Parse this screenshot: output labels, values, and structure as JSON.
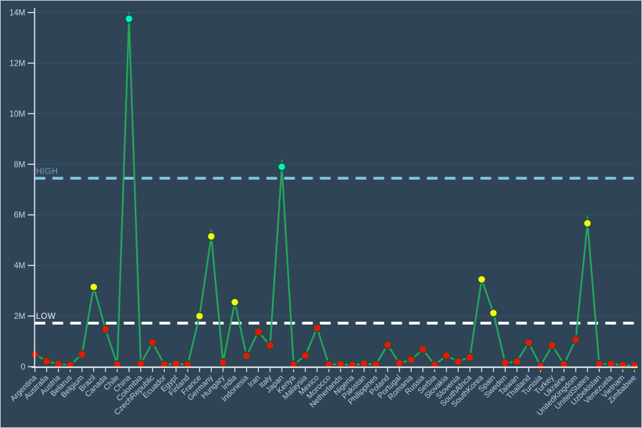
{
  "chart_data": {
    "type": "line",
    "title": "",
    "xlabel": "",
    "ylabel": "",
    "unit_suffix": "M",
    "categories": [
      "Argentina",
      "Australia",
      "Austria",
      "Belarus",
      "Belgium",
      "Brazil",
      "Canada",
      "Chile",
      "China",
      "Colombia",
      "CzechRepublic",
      "Ecuador",
      "Egypt",
      "Finland",
      "France",
      "Germany",
      "Hungary",
      "India",
      "Indonesia",
      "Iran",
      "Italy",
      "Japan",
      "Kenya",
      "Malaysia",
      "Mexico",
      "Morocco",
      "Netherlands",
      "Nigeria",
      "Pakistan",
      "Philippines",
      "Poland",
      "Portugal",
      "Romania",
      "Russia",
      "Serbia",
      "Slovakia",
      "Slovenia",
      "SouthAfrica",
      "SouthKorea",
      "Spain",
      "Sweden",
      "Taiwan",
      "Thailand",
      "Tunisia",
      "Turkey",
      "Ukraine",
      "UnitedKingdom",
      "UnitedStates",
      "Uzbekistan",
      "Venezuela",
      "Vietnam",
      "Zimbabwe"
    ],
    "values_millions": [
      0.49,
      0.21,
      0.1,
      0.06,
      0.49,
      3.15,
      1.48,
      0.08,
      13.75,
      0.11,
      0.96,
      0.08,
      0.11,
      0.08,
      2.0,
      5.15,
      0.16,
      2.55,
      0.43,
      1.38,
      0.84,
      7.9,
      0.07,
      0.44,
      1.53,
      0.08,
      0.1,
      0.06,
      0.12,
      0.08,
      0.86,
      0.13,
      0.27,
      0.68,
      0.07,
      0.43,
      0.21,
      0.37,
      3.45,
      2.12,
      0.15,
      0.2,
      0.95,
      0.03,
      0.84,
      0.09,
      1.07,
      5.67,
      0.1,
      0.11,
      0.06,
      0.04
    ],
    "ylim": [
      0,
      14
    ],
    "yticks": [
      0,
      2,
      4,
      6,
      8,
      10,
      12,
      14
    ],
    "ytick_labels": [
      "0",
      "2M",
      "4M",
      "6M",
      "8M",
      "10M",
      "12M",
      "14M"
    ],
    "grid": "horizontal-only",
    "legend": "none",
    "reference_lines": [
      {
        "name": "high",
        "label": "HIGH",
        "value_millions": 7.45
      },
      {
        "name": "low",
        "label": "LOW",
        "value_millions": 1.72
      }
    ],
    "marker_rule": "red below LOW threshold, yellow between LOW and HIGH, cyan above HIGH",
    "thresholds_millions": {
      "low": 1.72,
      "high": 7.45
    },
    "colors": {
      "background": "#2f4457",
      "grid": "#3c5063",
      "axis": "#e9eef3",
      "tick_label": "#c9d4de",
      "x_label": "#c3ced8",
      "line": "#22a85a",
      "marker_edge": "#1d4f33",
      "marker_low": "#e8170b",
      "marker_mid": "#f5f616",
      "marker_high": "#00f2cb",
      "high_line": "#7fc4dc",
      "high_label": "#6fa3be",
      "low_line": "#ffffff",
      "low_label": "#f2f5f7"
    }
  }
}
